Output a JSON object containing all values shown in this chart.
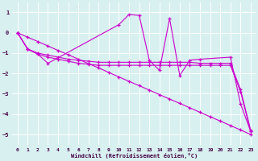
{
  "background_color": "#d8f0f0",
  "grid_color": "#ffffff",
  "line_color": "#cc00cc",
  "xlabel": "Windchill (Refroidissement éolien,°C)",
  "xlim": [
    -0.5,
    23.5
  ],
  "ylim": [
    -5.5,
    1.5
  ],
  "yticks": [
    -5,
    -4,
    -3,
    -2,
    -1,
    0,
    1
  ],
  "xticks": [
    0,
    1,
    2,
    3,
    4,
    5,
    6,
    7,
    8,
    9,
    10,
    11,
    12,
    13,
    14,
    15,
    16,
    17,
    18,
    19,
    20,
    21,
    22,
    23
  ],
  "series": [
    {
      "x": [
        0,
        1,
        2,
        3,
        4,
        5,
        6,
        7,
        8,
        9,
        10,
        11,
        12,
        13,
        14,
        15,
        16,
        17,
        18,
        19,
        20,
        21,
        22,
        23
      ],
      "y": [
        0.0,
        -0.22,
        -0.43,
        -0.65,
        -0.87,
        -1.08,
        -1.3,
        -1.52,
        -1.73,
        -1.95,
        -2.17,
        -2.39,
        -2.6,
        -2.82,
        -3.04,
        -3.26,
        -3.47,
        -3.69,
        -3.91,
        -4.13,
        -4.34,
        -4.56,
        -4.78,
        -5.0
      ]
    },
    {
      "x": [
        0,
        1,
        2,
        3,
        4,
        5,
        6,
        7,
        8,
        9,
        10,
        11,
        12,
        13,
        14,
        15,
        16,
        17,
        18,
        19,
        20,
        21,
        22,
        23
      ],
      "y": [
        0.0,
        -0.8,
        -1.0,
        -1.1,
        -1.2,
        -1.3,
        -1.35,
        -1.4,
        -1.45,
        -1.45,
        -1.45,
        -1.45,
        -1.45,
        -1.45,
        -1.45,
        -1.45,
        -1.45,
        -1.45,
        -1.5,
        -1.5,
        -1.5,
        -1.5,
        -2.8,
        -4.8
      ]
    },
    {
      "x": [
        0,
        1,
        2,
        3,
        4,
        5,
        6,
        7,
        8,
        9,
        10,
        11,
        12,
        13,
        14,
        15,
        16,
        17,
        18,
        19,
        20,
        21,
        22,
        23
      ],
      "y": [
        0.0,
        -0.8,
        -1.05,
        -1.2,
        -1.3,
        -1.4,
        -1.5,
        -1.55,
        -1.6,
        -1.6,
        -1.6,
        -1.6,
        -1.6,
        -1.6,
        -1.6,
        -1.6,
        -1.6,
        -1.6,
        -1.6,
        -1.6,
        -1.6,
        -1.6,
        -2.9,
        -4.85
      ]
    },
    {
      "x": [
        0,
        1,
        2,
        3,
        10,
        11,
        12,
        13,
        14,
        15,
        16,
        17,
        18,
        21,
        22,
        23
      ],
      "y": [
        0.0,
        -0.8,
        -1.05,
        -1.5,
        0.4,
        0.9,
        0.85,
        -1.35,
        -1.85,
        0.7,
        -2.1,
        -1.35,
        -1.3,
        -1.2,
        -3.5,
        -4.85
      ]
    }
  ]
}
